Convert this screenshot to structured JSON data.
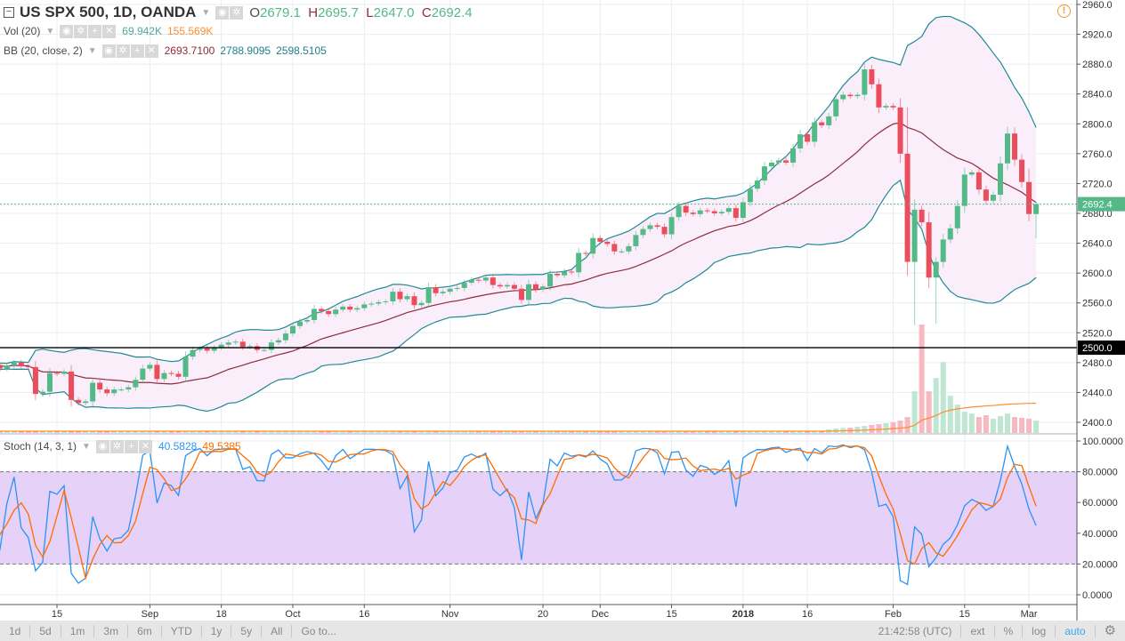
{
  "header": {
    "symbol": "US SPX 500, 1D, OANDA",
    "o_label": "O",
    "o": "2679.1",
    "h_label": "H",
    "h": "2695.7",
    "l_label": "L",
    "l": "2647.0",
    "c_label": "C",
    "c": "2692.4"
  },
  "indicators": {
    "vol": {
      "label": "Vol (20)",
      "value": "69.942K",
      "ma": "155.569K"
    },
    "bb": {
      "label": "BB (20, close, 2)",
      "basis": "2693.7100",
      "upper": "2788.9095",
      "lower": "2598.5105"
    },
    "stoch": {
      "label": "Stoch (14, 3, 1)",
      "k": "40.5828",
      "d": "49.5385"
    }
  },
  "markers": {
    "last_price": "2692.4",
    "hline": "2500.0"
  },
  "axis": {
    "price_ticks": [
      "2960.0",
      "2920.0",
      "2880.0",
      "2840.0",
      "2800.0",
      "2760.0",
      "2720.0",
      "2680.0",
      "2640.0",
      "2600.0",
      "2560.0",
      "2520.0",
      "2480.0",
      "2440.0",
      "2400.0"
    ],
    "stoch_ticks": [
      "100.0000",
      "80.0000",
      "60.0000",
      "40.0000",
      "20.0000",
      "0.0000"
    ],
    "time_ticks": [
      {
        "label": "15",
        "index": 10
      },
      {
        "label": "Sep",
        "index": 23
      },
      {
        "label": "18",
        "index": 33
      },
      {
        "label": "Oct",
        "index": 43
      },
      {
        "label": "16",
        "index": 53
      },
      {
        "label": "Nov",
        "index": 65
      },
      {
        "label": "20",
        "index": 78
      },
      {
        "label": "Dec",
        "index": 86
      },
      {
        "label": "15",
        "index": 96
      },
      {
        "label": "2018",
        "index": 106
      },
      {
        "label": "16",
        "index": 115
      },
      {
        "label": "Feb",
        "index": 127
      },
      {
        "label": "15",
        "index": 137
      },
      {
        "label": "Mar",
        "index": 146
      }
    ]
  },
  "toolbar": {
    "ranges": [
      "1d",
      "5d",
      "1m",
      "3m",
      "6m",
      "YTD",
      "1y",
      "5y",
      "All"
    ],
    "goto": "Go to...",
    "time": "21:42:58 (UTC)",
    "ext": "ext",
    "pct": "%",
    "log": "log",
    "auto": "auto"
  },
  "colors": {
    "up": "#53b987",
    "down": "#eb4d5c",
    "band": "#1f8a94",
    "basis": "#8e2b3b",
    "band_fill": "#fbeefb",
    "stoch_k": "#2a94f4",
    "stoch_d": "#ff6d00",
    "stoch_bg": "#e3ccf7",
    "vol_ma": "#ff8c2e"
  },
  "chart_data": {
    "type": "candlestick",
    "title": "US SPX 500, 1D, OANDA",
    "ylim": [
      2400,
      2960
    ],
    "closes": [
      2476,
      2477,
      2472,
      2476,
      2480,
      2475,
      2474,
      2438,
      2441,
      2466,
      2465,
      2468,
      2430,
      2426,
      2428,
      2453,
      2444,
      2439,
      2444,
      2444,
      2447,
      2457,
      2472,
      2477,
      2458,
      2466,
      2465,
      2461,
      2488,
      2497,
      2499,
      2496,
      2500,
      2504,
      2507,
      2508,
      2501,
      2502,
      2497,
      2497,
      2507,
      2510,
      2519,
      2529,
      2535,
      2537,
      2552,
      2549,
      2545,
      2551,
      2555,
      2551,
      2553,
      2558,
      2559,
      2561,
      2562,
      2575,
      2565,
      2569,
      2557,
      2560,
      2581,
      2573,
      2575,
      2579,
      2580,
      2587,
      2591,
      2590,
      2594,
      2584,
      2582,
      2584,
      2579,
      2564,
      2585,
      2578,
      2582,
      2599,
      2597,
      2602,
      2601,
      2627,
      2626,
      2647,
      2642,
      2639,
      2629,
      2629,
      2636,
      2651,
      2659,
      2664,
      2662,
      2652,
      2675,
      2690,
      2681,
      2679,
      2684,
      2683,
      2680,
      2682,
      2687,
      2674,
      2695,
      2713,
      2724,
      2743,
      2748,
      2751,
      2748,
      2767,
      2786,
      2776,
      2802,
      2798,
      2810,
      2833,
      2839,
      2837,
      2839,
      2873,
      2853,
      2822,
      2824,
      2822,
      2760,
      2615,
      2685,
      2668,
      2594,
      2615,
      2645,
      2660,
      2690,
      2732,
      2735,
      2712,
      2697,
      2705,
      2747,
      2787,
      2752,
      2722,
      2679.1,
      2692.4
    ],
    "open_overrides": {
      "146": 2722,
      "147": 2679.1
    },
    "high_overrides": {
      "146": 2740,
      "147": 2695.7,
      "129": 2822
    },
    "low_overrides": {
      "129": 2596,
      "130": 2530,
      "133": 2532,
      "147": 2647.0
    },
    "volume_default_k": 10,
    "volume_tail_start": 118,
    "volume_tail_k": [
      20,
      25,
      28,
      30,
      35,
      40,
      45,
      50,
      55,
      60,
      70,
      90,
      235,
      612,
      235,
      310,
      400,
      210,
      160,
      120,
      110,
      90,
      100,
      80,
      95,
      110,
      90,
      85,
      80,
      69.942
    ],
    "hline": 2500,
    "last": 2692.4
  }
}
